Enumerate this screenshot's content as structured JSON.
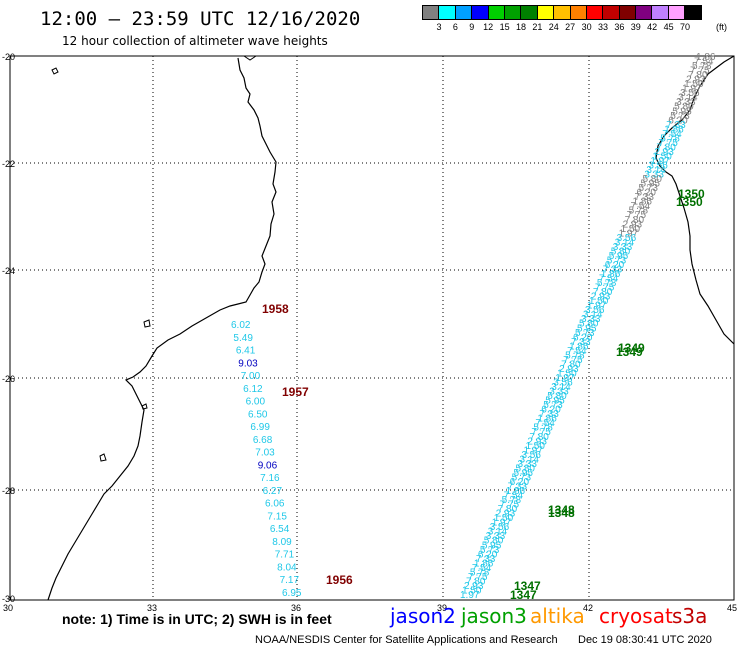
{
  "header": {
    "title": "12:00 – 23:59 UTC 12/16/2020",
    "subtitle": "12 hour collection of altimeter wave heights"
  },
  "legend": {
    "colors": [
      "#808080",
      "#00ffff",
      "#00a0ff",
      "#0000ff",
      "#00d000",
      "#00a000",
      "#008000",
      "#ffff00",
      "#ffc000",
      "#ff8000",
      "#ff0000",
      "#c00000",
      "#800000",
      "#800080",
      "#c080ff",
      "#ffa0ff",
      "#000000"
    ],
    "ticks": [
      "3",
      "6",
      "9",
      "12",
      "15",
      "18",
      "21",
      "24",
      "27",
      "30",
      "33",
      "36",
      "39",
      "42",
      "45",
      "70"
    ],
    "unit": "(ft)"
  },
  "axes": {
    "lat_labels": [
      "-20",
      "-22",
      "-24",
      "-26",
      "-28",
      "-30"
    ],
    "lon_labels": [
      "30",
      "33",
      "36",
      "39",
      "42",
      "45"
    ]
  },
  "track_left": {
    "times": [
      "1958",
      "1957",
      "1956"
    ],
    "heights": [
      "6.02",
      "5.49",
      "6.41",
      "9.03",
      "7.00",
      "6.12",
      "6.00",
      "6.50",
      "6.99",
      "6.68",
      "7.03",
      "9.06",
      "7.16",
      "6.27",
      "6.06",
      "7.15",
      "6.54",
      "8.09",
      "7.71",
      "8.04",
      "7.17",
      "6.95"
    ]
  },
  "track_right": {
    "times": [
      "1350",
      "1349",
      "1348",
      "1347"
    ],
    "heights_visible": [
      "1.86",
      "7.54",
      "5.78",
      "7.75",
      "7.80",
      "2.93",
      "1.50",
      "1.97",
      "3.56",
      "3.14",
      "3.33",
      "5.80",
      "5.95",
      "5.73",
      "6.20",
      "7.33"
    ]
  },
  "footer": {
    "note": "note: 1) Time is in UTC; 2) SWH is in feet",
    "sat_jason2": "jason2",
    "sat_jason3": "jason3",
    "sat_altika": "altika",
    "sat_cryosat": "cryosat",
    "sat_s3a": "s3a",
    "credit": "NOAA/NESDIS Center for Satellite Applications and Research",
    "timestamp": "Dec 19 08:30:41 UTC 2020"
  },
  "colors": {
    "track_cyan": "#20c8e8",
    "track_blue": "#0000c0",
    "time_dark_red": "#800000",
    "time_green": "#007000",
    "jason2": "#0000ff",
    "jason3": "#00a000",
    "altika": "#ff9900",
    "cryosat": "#ff0000",
    "s3a": "#c00000"
  }
}
